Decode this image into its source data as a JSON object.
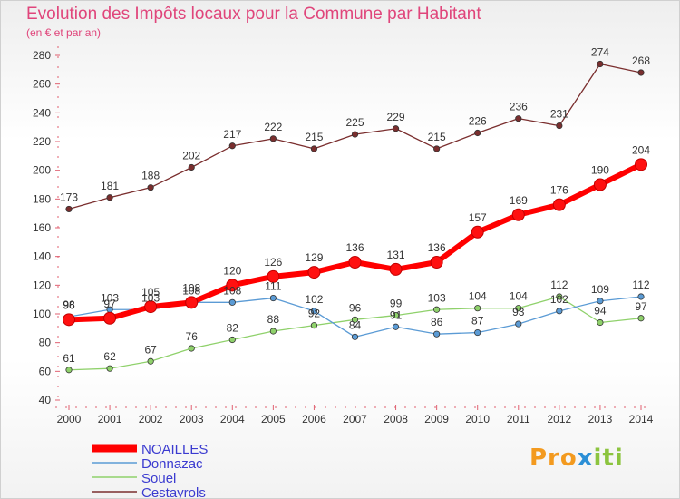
{
  "page": {
    "title": "Evolution des Impôts locaux pour la Commune par Habitant",
    "subtitle": "(en € et par an)"
  },
  "brand": {
    "part1": "Pro",
    "part2": "x",
    "part3": "iti"
  },
  "colors": {
    "NOAILLES": "#ff0000",
    "Donnazac": "#5b9bd5",
    "Souel": "#8fd16b",
    "Cestayrols": "#7a2e2e",
    "accent": "#e0457b"
  },
  "chart_data": {
    "type": "line",
    "title": "Evolution des Impôts locaux pour la Commune par Habitant",
    "subtitle": "(en € et par an)",
    "xlabel": "",
    "ylabel": "",
    "ylim": [
      40,
      280
    ],
    "yticks": [
      40,
      60,
      80,
      100,
      120,
      140,
      160,
      180,
      200,
      220,
      240,
      260,
      280
    ],
    "grid": false,
    "legend": "bottom-left",
    "categories": [
      "2000",
      "2001",
      "2002",
      "2003",
      "2004",
      "2005",
      "2006",
      "2007",
      "2008",
      "2009",
      "2010",
      "2011",
      "2012",
      "2013",
      "2014"
    ],
    "series": [
      {
        "name": "NOAILLES",
        "values": [
          96,
          97,
          105,
          108,
          120,
          126,
          129,
          136,
          131,
          136,
          157,
          169,
          176,
          190,
          204
        ]
      },
      {
        "name": "Donnazac",
        "values": [
          98,
          103,
          103,
          108,
          108,
          111,
          102,
          84,
          91,
          86,
          87,
          93,
          102,
          109,
          112
        ]
      },
      {
        "name": "Souel",
        "values": [
          61,
          62,
          67,
          76,
          82,
          88,
          92,
          96,
          99,
          103,
          104,
          104,
          112,
          94,
          97
        ]
      },
      {
        "name": "Cestayrols",
        "values": [
          173,
          181,
          188,
          202,
          217,
          222,
          215,
          225,
          229,
          215,
          226,
          236,
          231,
          274,
          268
        ]
      }
    ]
  }
}
